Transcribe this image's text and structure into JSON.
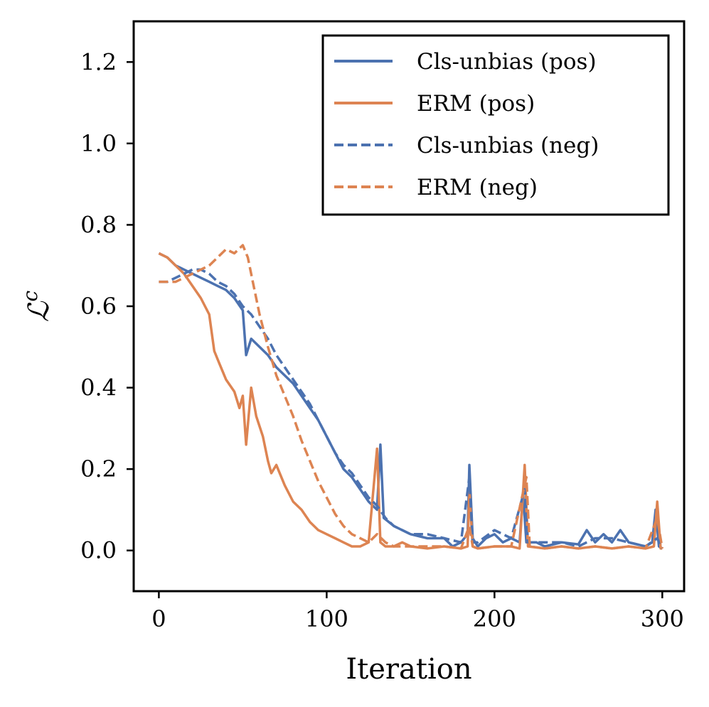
{
  "chart_data": {
    "type": "line",
    "title": "",
    "xlabel": "Iteration",
    "ylabel_main": "ℒ",
    "ylabel_sup": "c",
    "xlim": [
      -15,
      313
    ],
    "ylim": [
      -0.1,
      1.3
    ],
    "xticks": [
      0,
      100,
      200,
      300
    ],
    "xtick_labels": [
      "0",
      "100",
      "200",
      "300"
    ],
    "yticks": [
      0.0,
      0.2,
      0.4,
      0.6,
      0.8,
      1.0,
      1.2
    ],
    "ytick_labels": [
      "0.0",
      "0.2",
      "0.4",
      "0.6",
      "0.8",
      "1.0",
      "1.2"
    ],
    "grid": false,
    "legend_position": "top-right",
    "colors": {
      "blue": "#4c72b0",
      "orange": "#dd8452"
    },
    "series": [
      {
        "name": "Cls-unbias (pos)",
        "color": "#4c72b0",
        "dash": "solid",
        "points": [
          [
            0,
            0.73
          ],
          [
            5,
            0.72
          ],
          [
            10,
            0.7
          ],
          [
            15,
            0.69
          ],
          [
            20,
            0.68
          ],
          [
            25,
            0.67
          ],
          [
            30,
            0.66
          ],
          [
            35,
            0.65
          ],
          [
            40,
            0.64
          ],
          [
            45,
            0.62
          ],
          [
            50,
            0.59
          ],
          [
            52,
            0.48
          ],
          [
            55,
            0.52
          ],
          [
            60,
            0.5
          ],
          [
            65,
            0.48
          ],
          [
            70,
            0.45
          ],
          [
            75,
            0.43
          ],
          [
            80,
            0.41
          ],
          [
            85,
            0.38
          ],
          [
            90,
            0.35
          ],
          [
            95,
            0.32
          ],
          [
            100,
            0.28
          ],
          [
            105,
            0.24
          ],
          [
            110,
            0.2
          ],
          [
            115,
            0.18
          ],
          [
            120,
            0.15
          ],
          [
            125,
            0.12
          ],
          [
            130,
            0.1
          ],
          [
            132,
            0.26
          ],
          [
            134,
            0.08
          ],
          [
            140,
            0.06
          ],
          [
            150,
            0.04
          ],
          [
            160,
            0.03
          ],
          [
            170,
            0.03
          ],
          [
            175,
            0.01
          ],
          [
            180,
            0.02
          ],
          [
            184,
            0.04
          ],
          [
            185,
            0.21
          ],
          [
            187,
            0.03
          ],
          [
            190,
            0.01
          ],
          [
            195,
            0.03
          ],
          [
            200,
            0.04
          ],
          [
            205,
            0.02
          ],
          [
            210,
            0.03
          ],
          [
            215,
            0.02
          ],
          [
            217,
            0.14
          ],
          [
            219,
            0.02
          ],
          [
            225,
            0.02
          ],
          [
            230,
            0.01
          ],
          [
            240,
            0.02
          ],
          [
            250,
            0.015
          ],
          [
            255,
            0.05
          ],
          [
            260,
            0.02
          ],
          [
            265,
            0.04
          ],
          [
            270,
            0.02
          ],
          [
            275,
            0.05
          ],
          [
            280,
            0.02
          ],
          [
            285,
            0.015
          ],
          [
            290,
            0.01
          ],
          [
            294,
            0.02
          ],
          [
            296,
            0.1
          ],
          [
            298,
            0.01
          ],
          [
            300,
            0.005
          ]
        ]
      },
      {
        "name": "ERM (pos)",
        "color": "#dd8452",
        "dash": "solid",
        "points": [
          [
            0,
            0.73
          ],
          [
            5,
            0.72
          ],
          [
            10,
            0.7
          ],
          [
            15,
            0.68
          ],
          [
            20,
            0.65
          ],
          [
            25,
            0.62
          ],
          [
            30,
            0.58
          ],
          [
            33,
            0.49
          ],
          [
            36,
            0.46
          ],
          [
            40,
            0.42
          ],
          [
            45,
            0.39
          ],
          [
            48,
            0.35
          ],
          [
            50,
            0.38
          ],
          [
            52,
            0.26
          ],
          [
            55,
            0.4
          ],
          [
            58,
            0.33
          ],
          [
            62,
            0.28
          ],
          [
            65,
            0.22
          ],
          [
            67,
            0.19
          ],
          [
            70,
            0.21
          ],
          [
            75,
            0.16
          ],
          [
            80,
            0.12
          ],
          [
            85,
            0.1
          ],
          [
            90,
            0.07
          ],
          [
            95,
            0.05
          ],
          [
            100,
            0.04
          ],
          [
            105,
            0.03
          ],
          [
            110,
            0.02
          ],
          [
            115,
            0.01
          ],
          [
            120,
            0.01
          ],
          [
            125,
            0.02
          ],
          [
            130,
            0.25
          ],
          [
            132,
            0.02
          ],
          [
            135,
            0.01
          ],
          [
            140,
            0.01
          ],
          [
            145,
            0.02
          ],
          [
            150,
            0.01
          ],
          [
            160,
            0.005
          ],
          [
            170,
            0.01
          ],
          [
            180,
            0.005
          ],
          [
            184,
            0.01
          ],
          [
            185,
            0.15
          ],
          [
            187,
            0.01
          ],
          [
            190,
            0.005
          ],
          [
            200,
            0.01
          ],
          [
            210,
            0.01
          ],
          [
            215,
            0.005
          ],
          [
            218,
            0.21
          ],
          [
            220,
            0.01
          ],
          [
            230,
            0.005
          ],
          [
            240,
            0.01
          ],
          [
            250,
            0.005
          ],
          [
            260,
            0.01
          ],
          [
            270,
            0.005
          ],
          [
            280,
            0.01
          ],
          [
            290,
            0.005
          ],
          [
            295,
            0.01
          ],
          [
            297,
            0.12
          ],
          [
            299,
            0.005
          ],
          [
            300,
            0.005
          ]
        ]
      },
      {
        "name": "Cls-unbias (neg)",
        "color": "#4c72b0",
        "dash": "dashed",
        "points": [
          [
            0,
            0.66
          ],
          [
            5,
            0.66
          ],
          [
            10,
            0.67
          ],
          [
            15,
            0.68
          ],
          [
            20,
            0.69
          ],
          [
            25,
            0.69
          ],
          [
            30,
            0.68
          ],
          [
            35,
            0.66
          ],
          [
            40,
            0.65
          ],
          [
            45,
            0.63
          ],
          [
            50,
            0.6
          ],
          [
            55,
            0.58
          ],
          [
            60,
            0.55
          ],
          [
            65,
            0.52
          ],
          [
            70,
            0.48
          ],
          [
            75,
            0.45
          ],
          [
            80,
            0.42
          ],
          [
            85,
            0.39
          ],
          [
            90,
            0.36
          ],
          [
            95,
            0.32
          ],
          [
            100,
            0.28
          ],
          [
            105,
            0.24
          ],
          [
            110,
            0.21
          ],
          [
            115,
            0.19
          ],
          [
            120,
            0.16
          ],
          [
            125,
            0.13
          ],
          [
            130,
            0.11
          ],
          [
            135,
            0.08
          ],
          [
            140,
            0.06
          ],
          [
            150,
            0.04
          ],
          [
            160,
            0.04
          ],
          [
            170,
            0.03
          ],
          [
            180,
            0.02
          ],
          [
            185,
            0.18
          ],
          [
            187,
            0.02
          ],
          [
            190,
            0.02
          ],
          [
            200,
            0.05
          ],
          [
            210,
            0.03
          ],
          [
            218,
            0.15
          ],
          [
            220,
            0.02
          ],
          [
            230,
            0.02
          ],
          [
            240,
            0.02
          ],
          [
            250,
            0.01
          ],
          [
            260,
            0.03
          ],
          [
            270,
            0.03
          ],
          [
            280,
            0.02
          ],
          [
            290,
            0.01
          ],
          [
            297,
            0.03
          ],
          [
            300,
            0.005
          ]
        ]
      },
      {
        "name": "ERM (neg)",
        "color": "#dd8452",
        "dash": "dashed",
        "points": [
          [
            0,
            0.66
          ],
          [
            5,
            0.66
          ],
          [
            10,
            0.66
          ],
          [
            15,
            0.67
          ],
          [
            20,
            0.68
          ],
          [
            25,
            0.69
          ],
          [
            30,
            0.7
          ],
          [
            35,
            0.72
          ],
          [
            40,
            0.74
          ],
          [
            45,
            0.73
          ],
          [
            50,
            0.75
          ],
          [
            53,
            0.72
          ],
          [
            56,
            0.66
          ],
          [
            60,
            0.58
          ],
          [
            65,
            0.5
          ],
          [
            70,
            0.43
          ],
          [
            75,
            0.38
          ],
          [
            80,
            0.33
          ],
          [
            85,
            0.27
          ],
          [
            90,
            0.22
          ],
          [
            95,
            0.17
          ],
          [
            100,
            0.13
          ],
          [
            105,
            0.09
          ],
          [
            110,
            0.06
          ],
          [
            115,
            0.04
          ],
          [
            120,
            0.03
          ],
          [
            125,
            0.02
          ],
          [
            130,
            0.04
          ],
          [
            135,
            0.02
          ],
          [
            140,
            0.01
          ],
          [
            150,
            0.01
          ],
          [
            160,
            0.01
          ],
          [
            170,
            0.01
          ],
          [
            180,
            0.005
          ],
          [
            185,
            0.06
          ],
          [
            187,
            0.01
          ],
          [
            190,
            0.005
          ],
          [
            200,
            0.01
          ],
          [
            210,
            0.01
          ],
          [
            219,
            0.18
          ],
          [
            221,
            0.01
          ],
          [
            230,
            0.005
          ],
          [
            240,
            0.01
          ],
          [
            250,
            0.005
          ],
          [
            260,
            0.01
          ],
          [
            270,
            0.005
          ],
          [
            280,
            0.01
          ],
          [
            290,
            0.005
          ],
          [
            297,
            0.08
          ],
          [
            300,
            0.005
          ]
        ]
      }
    ]
  }
}
